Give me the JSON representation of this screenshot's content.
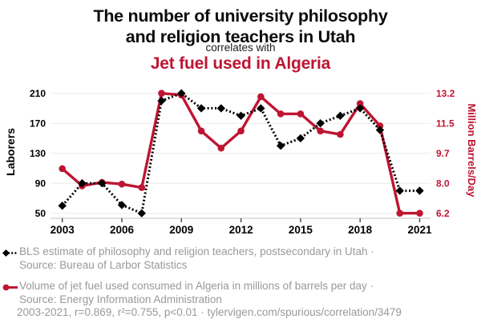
{
  "header": {
    "title_line1": "The number of university philosophy",
    "title_line2": "and religion teachers in Utah",
    "connector": "correlates with",
    "subtitle": "Jet fuel used in Algeria"
  },
  "colors": {
    "accent_red": "#be1532",
    "series_black": "#000000",
    "legend_gray": "#999999",
    "gridline": "#ececec",
    "axis_line": "#c2c2c2",
    "tick_mark": "#444444"
  },
  "chart_data": {
    "type": "line",
    "x": [
      2003,
      2004,
      2005,
      2006,
      2007,
      2008,
      2009,
      2010,
      2011,
      2012,
      2013,
      2014,
      2015,
      2016,
      2017,
      2018,
      2019,
      2020,
      2021
    ],
    "x_ticks": [
      2003,
      2006,
      2009,
      2012,
      2015,
      2018,
      2021
    ],
    "series": [
      {
        "name": "BLS estimate of philosophy and religion teachers, postsecondary in Utah",
        "axis": "left",
        "color": "#000000",
        "style": "dashed",
        "marker": "diamond",
        "values": [
          60,
          90,
          90,
          61,
          50,
          200,
          210,
          190,
          190,
          180,
          190,
          140,
          150,
          170,
          180,
          190,
          161,
          80,
          80
        ]
      },
      {
        "name": "Volume of jet fuel used consumed in Algeria in millions of barrels per day",
        "axis": "right",
        "color": "#be1532",
        "style": "solid",
        "marker": "circle",
        "values": [
          8.8,
          7.8,
          8.0,
          7.9,
          7.7,
          13.2,
          13.1,
          11.0,
          10.0,
          11.0,
          13.0,
          12.0,
          12.0,
          11.0,
          10.8,
          12.6,
          11.3,
          6.2,
          6.2
        ]
      }
    ],
    "left_axis": {
      "label": "Laborers",
      "ticks": [
        210,
        170,
        130,
        90,
        50
      ],
      "range": [
        50,
        210
      ]
    },
    "right_axis": {
      "label": "Million Barrels/Day",
      "ticks": [
        13.2,
        11.5,
        9.7,
        8.0,
        6.2
      ],
      "range": [
        6.2,
        13.2
      ]
    },
    "grid": "horizontal",
    "legend_position": "bottom"
  },
  "legend": {
    "series1": {
      "line1": "BLS estimate of philosophy and religion teachers, postsecondary in Utah ·",
      "line2": "Source: Bureau of Larbor Statistics"
    },
    "series2": {
      "line1": "Volume of jet fuel used consumed in Algeria in millions of barrels per day ·",
      "line2": "Source: Energy Information Administration"
    }
  },
  "footer": {
    "text": "2003-2021, r=0.869, r²=0.755, p<0.01 · tylervigen.com/spurious/correlation/3479"
  }
}
